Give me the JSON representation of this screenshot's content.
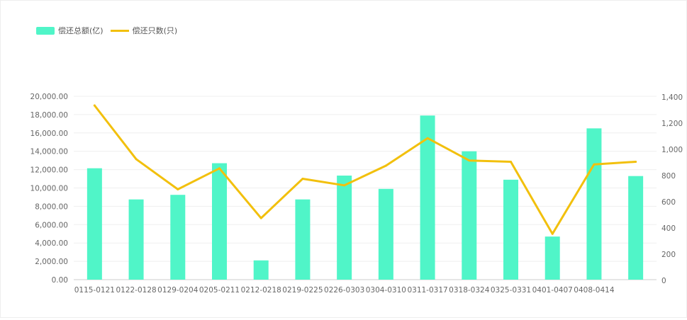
{
  "colors": {
    "bar": "#50f5c8",
    "line": "#f2c00d",
    "grid": "#efefef",
    "axis": "#cccccc"
  },
  "chart_data": {
    "type": "bar",
    "categories": [
      "0115-0121",
      "0122-0128",
      "0129-0204",
      "0205-0211",
      "0212-0218",
      "0219-0225",
      "0226-0303",
      "0304-0310",
      "0311-0317",
      "0318-0324",
      "0325-0331",
      "0401-0407",
      "0408-0414",
      ""
    ],
    "series": [
      {
        "name": "偿还总额(亿)",
        "type": "bar",
        "axis": "left",
        "values": [
          12150,
          8750,
          9250,
          12700,
          2100,
          8750,
          11350,
          9900,
          17900,
          14000,
          10900,
          4700,
          16500,
          11300
        ]
      },
      {
        "name": "偿还只数(只)",
        "type": "line",
        "axis": "right",
        "values": [
          1330,
          920,
          690,
          850,
          470,
          770,
          720,
          870,
          1080,
          910,
          900,
          350,
          880,
          900
        ]
      }
    ],
    "y_left": {
      "min": 0,
      "max": 20000,
      "ticks": [
        "0.00",
        "2,000.00",
        "4,000.00",
        "6,000.00",
        "8,000.00",
        "10,000.00",
        "12,000.00",
        "14,000.00",
        "16,000.00",
        "18,000.00",
        "20,000.00"
      ]
    },
    "y_right": {
      "min": 0,
      "max": 1400,
      "ticks": [
        "0",
        "200",
        "400",
        "600",
        "800",
        "1,000",
        "1,200",
        "1,400"
      ]
    },
    "legend_position": "top-left",
    "grid": true
  }
}
